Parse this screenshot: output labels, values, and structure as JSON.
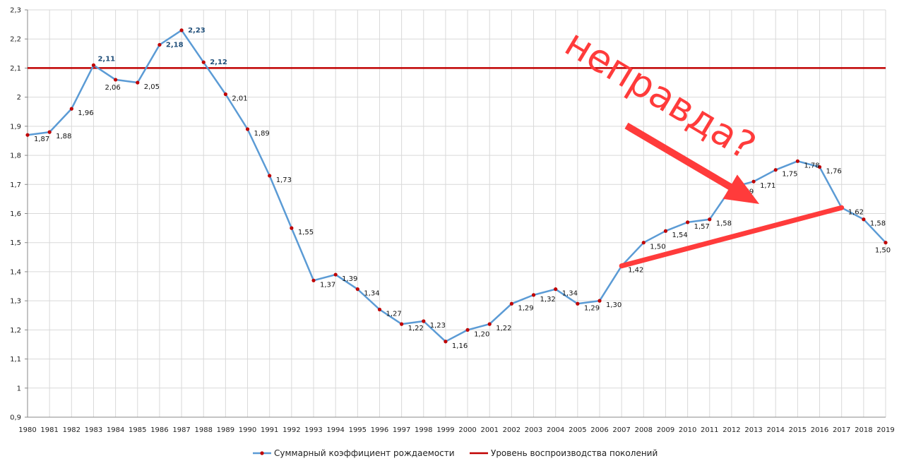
{
  "chart_data": {
    "type": "line",
    "x": [
      1980,
      1981,
      1982,
      1983,
      1984,
      1985,
      1986,
      1987,
      1988,
      1989,
      1990,
      1991,
      1992,
      1993,
      1994,
      1995,
      1996,
      1997,
      1998,
      1999,
      2000,
      2001,
      2002,
      2003,
      2004,
      2005,
      2006,
      2007,
      2008,
      2009,
      2010,
      2011,
      2012,
      2013,
      2014,
      2015,
      2016,
      2017,
      2018,
      2019
    ],
    "series": [
      {
        "name": "Суммарный коэффициент рождаемости",
        "color": "#5b9bd5",
        "marker_color": "#c00000",
        "values": [
          1.87,
          1.88,
          1.96,
          2.11,
          2.06,
          2.05,
          2.18,
          2.23,
          2.12,
          2.01,
          1.89,
          1.73,
          1.55,
          1.37,
          1.39,
          1.34,
          1.27,
          1.22,
          1.23,
          1.16,
          1.2,
          1.22,
          1.29,
          1.32,
          1.34,
          1.29,
          1.3,
          1.42,
          1.5,
          1.54,
          1.57,
          1.58,
          1.69,
          1.71,
          1.75,
          1.78,
          1.76,
          1.62,
          1.58,
          1.5
        ],
        "labels": [
          "1,87",
          "1,88",
          "1,96",
          "2,11",
          "2,06",
          "2,05",
          "2,18",
          "2,23",
          "2,12",
          "2,01",
          "1,89",
          "1,73",
          "1,55",
          "1,37",
          "1,39",
          "1,34",
          "1,27",
          "1,22",
          "1,23",
          "1,16",
          "1,20",
          "1,22",
          "1,29",
          "1,32",
          "1,34",
          "1,29",
          "1,30",
          "1,42",
          "1,50",
          "1,54",
          "1,57",
          "1,58",
          "1,69",
          "1,71",
          "1,75",
          "1,78",
          "1,76",
          "1,62",
          "1,58",
          "1,50"
        ]
      },
      {
        "name": "Уровень воспроизводства поколений",
        "color": "#c00000",
        "constant": 2.1
      }
    ],
    "ylim": [
      0.9,
      2.3
    ],
    "yticks": [
      0.9,
      1.0,
      1.1,
      1.2,
      1.3,
      1.4,
      1.5,
      1.6,
      1.7,
      1.8,
      1.9,
      2.0,
      2.1,
      2.2,
      2.3
    ],
    "ytick_labels": [
      "0,9",
      "1",
      "1,1",
      "1,2",
      "1,3",
      "1,4",
      "1,5",
      "1,6",
      "1,7",
      "1,8",
      "1,9",
      "2",
      "2,1",
      "2,2",
      "2,3"
    ],
    "grid": true,
    "legend_position": "bottom",
    "annotations": {
      "text": "неправда?",
      "color": "#ff3b3b",
      "arrow_pointing_at": 2013,
      "trend_line": {
        "from_x": 2007,
        "from_y": 1.42,
        "to_x": 2017,
        "to_y": 1.62
      }
    }
  }
}
